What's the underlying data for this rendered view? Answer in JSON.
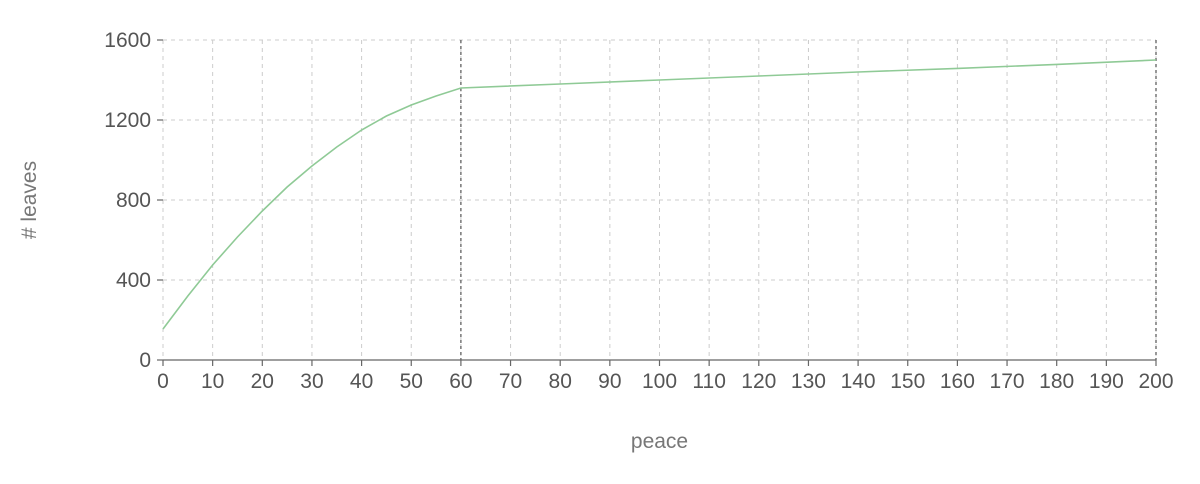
{
  "chart_data": {
    "type": "line",
    "title": "",
    "xlabel": "peace",
    "ylabel": "# leaves",
    "xlim": [
      0,
      200
    ],
    "ylim": [
      0,
      1600
    ],
    "x_ticks": [
      0,
      10,
      20,
      30,
      40,
      50,
      60,
      70,
      80,
      90,
      100,
      110,
      120,
      130,
      140,
      150,
      160,
      170,
      180,
      190,
      200
    ],
    "y_ticks": [
      0,
      400,
      800,
      1200,
      1600
    ],
    "grid": true,
    "reference_lines_x": [
      60,
      200
    ],
    "series": [
      {
        "color": "#8fca96",
        "x": [
          0,
          5,
          10,
          15,
          20,
          25,
          30,
          35,
          40,
          45,
          50,
          55,
          60,
          80,
          100,
          120,
          140,
          160,
          180,
          200
        ],
        "y": [
          155,
          320,
          475,
          615,
          745,
          865,
          970,
          1065,
          1150,
          1220,
          1275,
          1320,
          1360,
          1380,
          1400,
          1420,
          1440,
          1458,
          1478,
          1500
        ]
      }
    ]
  }
}
